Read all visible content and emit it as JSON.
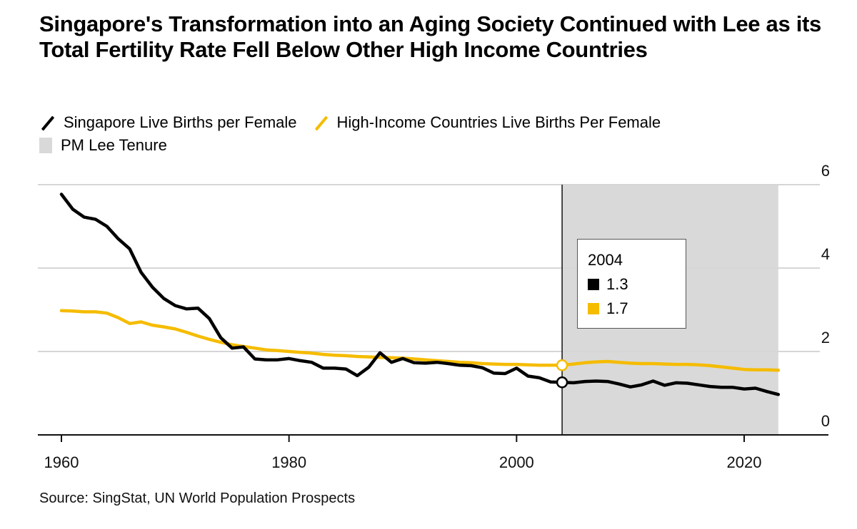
{
  "title": "Singapore's Transformation into an Aging Society Continued with Lee as its Total Fertility Rate Fell Below Other High Income Countries",
  "legend": [
    {
      "label": "Singapore Live Births per Female",
      "color": "#000000",
      "kind": "line"
    },
    {
      "label": "High-Income Countries Live Births Per Female",
      "color": "#f5bc00",
      "kind": "line"
    },
    {
      "label": "PM Lee Tenure",
      "color": "#d9d9d9",
      "kind": "box"
    }
  ],
  "tooltip": {
    "year": "2004",
    "rows": [
      {
        "value": "1.3",
        "color": "#000000"
      },
      {
        "value": "1.7",
        "color": "#f5bc00"
      }
    ]
  },
  "source": "Source: SingStat, UN World Population Prospects",
  "chart_data": {
    "type": "line",
    "title": "Singapore's Transformation into an Aging Society Continued with Lee as its Total Fertility Rate Fell Below Other High Income Countries",
    "xlabel": "",
    "ylabel": "",
    "xlim": [
      1958,
      2027
    ],
    "ylim": [
      0,
      6
    ],
    "x_ticks": [
      1960,
      1980,
      2000,
      2020
    ],
    "y_ticks": [
      0,
      2,
      4,
      6
    ],
    "y_axis_side": "right",
    "grid": "horizontal",
    "legend_position": "top-left",
    "shaded_region": {
      "label": "PM Lee Tenure",
      "from": 2004,
      "to": 2023,
      "color": "#d9d9d9"
    },
    "highlight_year": 2004,
    "x": [
      1960,
      1961,
      1962,
      1963,
      1964,
      1965,
      1966,
      1967,
      1968,
      1969,
      1970,
      1971,
      1972,
      1973,
      1974,
      1975,
      1976,
      1977,
      1978,
      1979,
      1980,
      1981,
      1982,
      1983,
      1984,
      1985,
      1986,
      1987,
      1988,
      1989,
      1990,
      1991,
      1992,
      1993,
      1994,
      1995,
      1996,
      1997,
      1998,
      1999,
      2000,
      2001,
      2002,
      2003,
      2004,
      2005,
      2006,
      2007,
      2008,
      2009,
      2010,
      2011,
      2012,
      2013,
      2014,
      2015,
      2016,
      2017,
      2018,
      2019,
      2020,
      2021,
      2022,
      2023
    ],
    "series": [
      {
        "name": "Singapore Live Births per Female",
        "color": "#000000",
        "values": [
          5.77,
          5.41,
          5.22,
          5.17,
          5.0,
          4.7,
          4.46,
          3.9,
          3.54,
          3.27,
          3.1,
          3.02,
          3.04,
          2.79,
          2.33,
          2.08,
          2.11,
          1.82,
          1.8,
          1.8,
          1.83,
          1.78,
          1.74,
          1.6,
          1.6,
          1.58,
          1.42,
          1.62,
          1.97,
          1.74,
          1.83,
          1.73,
          1.72,
          1.74,
          1.71,
          1.67,
          1.66,
          1.61,
          1.48,
          1.47,
          1.6,
          1.41,
          1.37,
          1.27,
          1.26,
          1.25,
          1.28,
          1.29,
          1.28,
          1.22,
          1.15,
          1.2,
          1.29,
          1.19,
          1.25,
          1.24,
          1.2,
          1.16,
          1.14,
          1.14,
          1.1,
          1.12,
          1.04,
          0.97
        ]
      },
      {
        "name": "High-Income Countries Live Births Per Female",
        "color": "#f5bc00",
        "values": [
          2.98,
          2.97,
          2.95,
          2.95,
          2.92,
          2.81,
          2.67,
          2.71,
          2.63,
          2.59,
          2.54,
          2.46,
          2.37,
          2.29,
          2.22,
          2.16,
          2.12,
          2.08,
          2.04,
          2.02,
          2.0,
          1.98,
          1.96,
          1.93,
          1.91,
          1.9,
          1.88,
          1.87,
          1.86,
          1.85,
          1.84,
          1.82,
          1.8,
          1.78,
          1.76,
          1.74,
          1.73,
          1.71,
          1.7,
          1.69,
          1.69,
          1.68,
          1.67,
          1.67,
          1.67,
          1.7,
          1.73,
          1.75,
          1.76,
          1.74,
          1.72,
          1.71,
          1.71,
          1.7,
          1.69,
          1.69,
          1.68,
          1.66,
          1.63,
          1.6,
          1.57,
          1.56,
          1.56,
          1.55
        ]
      }
    ]
  }
}
